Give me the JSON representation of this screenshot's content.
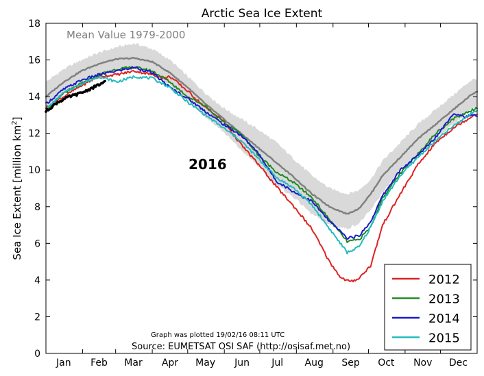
{
  "chart_data": {
    "type": "line",
    "title": "Arctic Sea Ice Extent",
    "xlabel": "",
    "ylabel": "Sea Ice Extent [million km²]",
    "ylabel_main": "Sea Ice Extent [million km",
    "ylabel_sup": "2",
    "ylabel_end": "]",
    "xlim": [
      0,
      365
    ],
    "ylim": [
      0,
      18
    ],
    "yticks": [
      0,
      2,
      4,
      6,
      8,
      10,
      12,
      14,
      16,
      18
    ],
    "ytick_labels": [
      "0",
      "2",
      "4",
      "6",
      "8",
      "10",
      "12",
      "14",
      "16",
      "18"
    ],
    "month_labels": [
      {
        "label": "Jan",
        "day": 15
      },
      {
        "label": "Feb",
        "day": 45
      },
      {
        "label": "Mar",
        "day": 74
      },
      {
        "label": "Apr",
        "day": 105
      },
      {
        "label": "May",
        "day": 135
      },
      {
        "label": "Jun",
        "day": 166
      },
      {
        "label": "Jul",
        "day": 196
      },
      {
        "label": "Aug",
        "day": 227
      },
      {
        "label": "Sep",
        "day": 258
      },
      {
        "label": "Oct",
        "day": 288
      },
      {
        "label": "Nov",
        "day": 319
      },
      {
        "label": "Dec",
        "day": 349
      }
    ],
    "month_boundaries": [
      31,
      59,
      90,
      120,
      151,
      181,
      212,
      243,
      273,
      304,
      334
    ],
    "grid": false,
    "legend_position": "bottom-right",
    "band": {
      "name": "Mean +/- 2 std",
      "color": "#d9d9d9",
      "x": [
        0,
        15,
        30,
        45,
        60,
        75,
        90,
        105,
        120,
        135,
        150,
        165,
        180,
        195,
        210,
        225,
        240,
        255,
        265,
        275,
        285,
        300,
        315,
        330,
        345,
        360,
        365
      ],
      "upper": [
        14.8,
        15.5,
        16.0,
        16.4,
        16.7,
        16.9,
        16.6,
        16.0,
        15.1,
        14.2,
        13.4,
        12.8,
        12.2,
        11.5,
        10.6,
        9.7,
        9.0,
        8.7,
        8.9,
        9.5,
        10.5,
        11.5,
        12.5,
        13.3,
        14.1,
        14.9,
        15.0
      ],
      "lower": [
        13.2,
        14.1,
        14.8,
        15.2,
        15.4,
        15.5,
        15.2,
        14.6,
        13.8,
        12.9,
        12.1,
        11.1,
        10.2,
        9.2,
        8.5,
        7.6,
        7.0,
        6.8,
        7.1,
        7.8,
        8.8,
        9.9,
        10.8,
        11.7,
        12.5,
        13.3,
        13.4
      ]
    },
    "series": [
      {
        "name": "Mean Value 1979-2000",
        "color": "#808080",
        "width": 2.5,
        "in_legend": false,
        "x": [
          0,
          15,
          30,
          45,
          60,
          75,
          90,
          105,
          120,
          135,
          150,
          165,
          180,
          195,
          210,
          225,
          240,
          255,
          265,
          275,
          285,
          300,
          315,
          330,
          345,
          360,
          365
        ],
        "y": [
          14.0,
          14.8,
          15.4,
          15.8,
          16.05,
          16.1,
          15.9,
          15.3,
          14.5,
          13.6,
          12.8,
          12.0,
          11.2,
          10.4,
          9.6,
          8.7,
          8.0,
          7.6,
          7.9,
          8.7,
          9.7,
          10.7,
          11.7,
          12.5,
          13.3,
          14.1,
          14.3
        ]
      },
      {
        "name": "2012",
        "color": "#dd2222",
        "width": 2,
        "in_legend": true,
        "x": [
          0,
          15,
          30,
          45,
          60,
          75,
          90,
          100,
          105,
          120,
          135,
          150,
          165,
          180,
          195,
          210,
          225,
          240,
          250,
          258,
          265,
          275,
          285,
          300,
          315,
          330,
          345,
          365
        ],
        "y": [
          13.4,
          14.0,
          14.6,
          15.1,
          15.2,
          15.4,
          15.2,
          15.0,
          15.1,
          14.3,
          13.4,
          12.7,
          11.4,
          10.3,
          9.1,
          8.0,
          6.8,
          5.0,
          4.1,
          3.9,
          4.1,
          4.8,
          7.0,
          8.7,
          10.3,
          11.5,
          12.3,
          13.1
        ]
      },
      {
        "name": "2013",
        "color": "#228822",
        "width": 2,
        "in_legend": true,
        "x": [
          0,
          15,
          30,
          45,
          60,
          75,
          90,
          105,
          120,
          135,
          150,
          165,
          180,
          195,
          210,
          225,
          240,
          255,
          265,
          275,
          285,
          300,
          315,
          330,
          345,
          365
        ],
        "y": [
          13.2,
          14.2,
          14.7,
          15.2,
          15.5,
          15.6,
          15.4,
          14.8,
          14.0,
          13.5,
          12.6,
          12.0,
          10.8,
          9.9,
          9.3,
          8.5,
          7.3,
          6.1,
          6.2,
          6.9,
          8.5,
          9.8,
          10.9,
          12.0,
          12.8,
          13.4
        ]
      },
      {
        "name": "2014",
        "color": "#1a1acc",
        "width": 2,
        "in_legend": true,
        "x": [
          0,
          15,
          30,
          45,
          60,
          75,
          90,
          105,
          120,
          135,
          150,
          165,
          180,
          195,
          210,
          225,
          240,
          255,
          265,
          275,
          285,
          300,
          315,
          330,
          345,
          355,
          365
        ],
        "y": [
          13.6,
          14.4,
          14.9,
          15.2,
          15.4,
          15.6,
          15.3,
          14.5,
          13.9,
          13.2,
          12.5,
          11.9,
          10.9,
          9.4,
          8.8,
          8.3,
          7.2,
          6.3,
          6.4,
          7.2,
          8.6,
          10.0,
          10.8,
          11.8,
          13.1,
          12.9,
          13.0
        ]
      },
      {
        "name": "2015",
        "color": "#22bbbb",
        "width": 2,
        "in_legend": true,
        "x": [
          0,
          15,
          30,
          45,
          60,
          75,
          90,
          105,
          120,
          135,
          150,
          165,
          180,
          195,
          210,
          225,
          240,
          255,
          265,
          275,
          285,
          300,
          315,
          330,
          345,
          365
        ],
        "y": [
          13.3,
          14.2,
          14.7,
          15.1,
          14.8,
          15.1,
          15.0,
          14.5,
          13.7,
          13.0,
          12.3,
          11.6,
          10.6,
          9.6,
          9.0,
          8.1,
          6.8,
          5.5,
          5.8,
          6.9,
          8.3,
          9.7,
          10.7,
          11.6,
          12.4,
          13.3
        ]
      },
      {
        "name": "2016",
        "color": "#000000",
        "width": 3.5,
        "in_legend": false,
        "x": [
          0,
          10,
          20,
          30,
          40,
          50
        ],
        "y": [
          13.2,
          13.7,
          14.0,
          14.2,
          14.5,
          14.8
        ]
      }
    ],
    "annotations": {
      "mean_label": "Mean Value 1979-2000",
      "year_label": "2016",
      "plotted_note": "Graph was plotted 19/02/16 08:11 UTC",
      "source": "Source: EUMETSAT OSI SAF (http://osisaf.met.no)"
    }
  }
}
